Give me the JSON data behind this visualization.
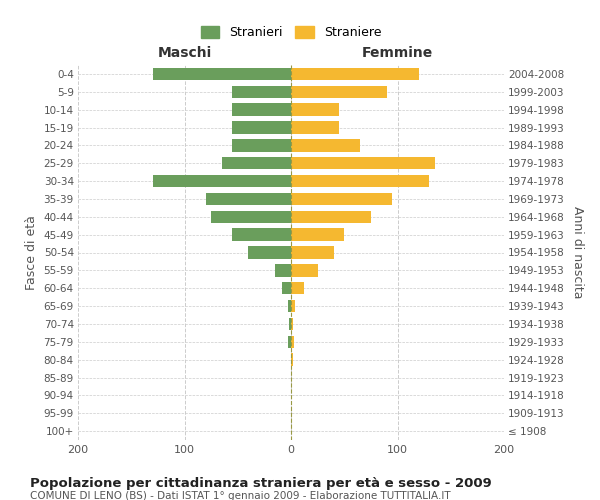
{
  "age_groups": [
    "0-4",
    "5-9",
    "10-14",
    "15-19",
    "20-24",
    "25-29",
    "30-34",
    "35-39",
    "40-44",
    "45-49",
    "50-54",
    "55-59",
    "60-64",
    "65-69",
    "70-74",
    "75-79",
    "80-84",
    "85-89",
    "90-94",
    "95-99",
    "100+"
  ],
  "birth_years": [
    "2004-2008",
    "1999-2003",
    "1994-1998",
    "1989-1993",
    "1984-1988",
    "1979-1983",
    "1974-1978",
    "1969-1973",
    "1964-1968",
    "1959-1963",
    "1954-1958",
    "1949-1953",
    "1944-1948",
    "1939-1943",
    "1934-1938",
    "1929-1933",
    "1924-1928",
    "1919-1923",
    "1914-1918",
    "1909-1913",
    "≤ 1908"
  ],
  "males": [
    130,
    55,
    55,
    55,
    55,
    65,
    130,
    80,
    75,
    55,
    40,
    15,
    8,
    3,
    2,
    3,
    0,
    0,
    0,
    0,
    0
  ],
  "females": [
    120,
    90,
    45,
    45,
    65,
    135,
    130,
    95,
    75,
    50,
    40,
    25,
    12,
    4,
    2,
    3,
    2,
    0,
    0,
    0,
    0
  ],
  "male_color": "#6a9e5c",
  "female_color": "#f5b830",
  "male_label": "Stranieri",
  "female_label": "Straniere",
  "title": "Popolazione per cittadinanza straniera per età e sesso - 2009",
  "subtitle": "COMUNE DI LENO (BS) - Dati ISTAT 1° gennaio 2009 - Elaborazione TUTTITALIA.IT",
  "xlabel_left": "Maschi",
  "xlabel_right": "Femmine",
  "ylabel_left": "Fasce di età",
  "ylabel_right": "Anni di nascita",
  "xlim": 200,
  "background_color": "#ffffff",
  "grid_color": "#cccccc",
  "text_color": "#555555"
}
